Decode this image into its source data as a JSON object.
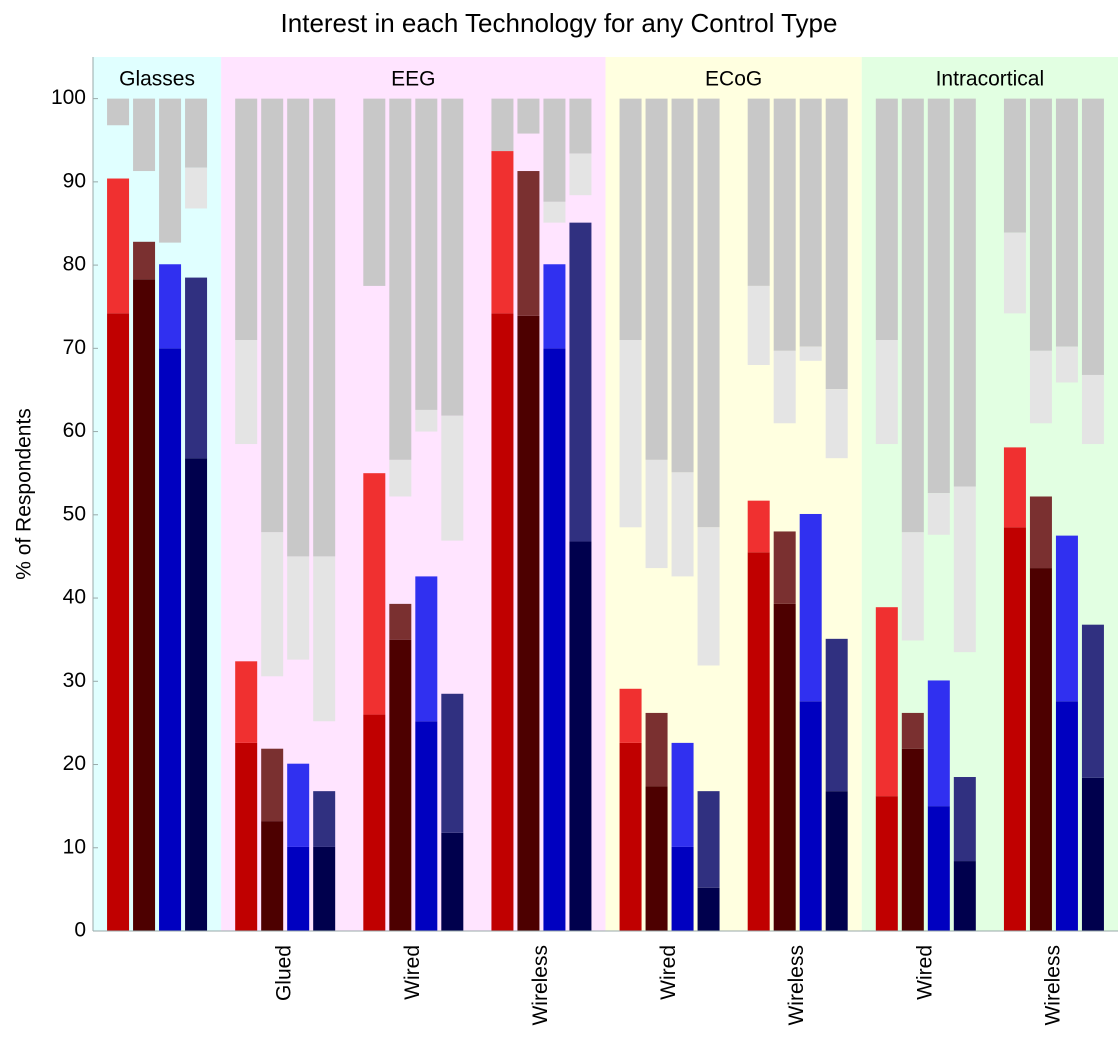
{
  "chart_data": {
    "type": "grouped-stacked-bar",
    "title": "Interest in each Technology for any Control Type",
    "y_label": "% of Respondents",
    "ylim": [
      0,
      105
    ],
    "yticks": [
      0,
      10,
      20,
      30,
      40,
      50,
      60,
      70,
      80,
      90,
      100
    ],
    "total": 100,
    "bar_colors": [
      [
        "#c00000",
        "#f03030"
      ],
      [
        "#4d0000",
        "#7a3030"
      ],
      [
        "#0000c0",
        "#3030f0"
      ],
      [
        "#00004d",
        "#303080"
      ]
    ],
    "negative_colors": [
      "#c8c8c8",
      "#e4e4e4"
    ],
    "groups": [
      {
        "label": "Glasses",
        "background": "#e0ffff",
        "clusters": [
          {
            "label": null,
            "bars": [
              [
                74.2,
                16.2,
                3.2,
                0
              ],
              [
                78.3,
                4.5,
                8.7,
                0
              ],
              [
                70.0,
                10.1,
                17.3,
                0
              ],
              [
                56.8,
                21.7,
                8.3,
                4.9
              ]
            ]
          }
        ]
      },
      {
        "label": "EEG",
        "background": "#ffe4ff",
        "clusters": [
          {
            "label": "Glued",
            "bars": [
              [
                22.6,
                9.8,
                29.0,
                12.5
              ],
              [
                13.2,
                8.7,
                52.1,
                17.3
              ],
              [
                10.1,
                10.0,
                55.0,
                12.4
              ],
              [
                10.1,
                6.7,
                55.0,
                19.8
              ]
            ]
          },
          {
            "label": "Wired",
            "bars": [
              [
                26.0,
                29.0,
                22.5,
                0
              ],
              [
                35.0,
                4.3,
                43.4,
                4.4
              ],
              [
                25.2,
                17.4,
                37.4,
                2.6
              ],
              [
                11.8,
                16.7,
                38.1,
                15.0
              ]
            ]
          },
          {
            "label": "Wireless",
            "bars": [
              [
                74.2,
                19.5,
                6.3,
                0
              ],
              [
                73.9,
                17.4,
                4.2,
                0
              ],
              [
                70.0,
                10.1,
                12.4,
                2.5
              ],
              [
                46.8,
                38.3,
                6.6,
                5.0
              ]
            ]
          }
        ]
      },
      {
        "label": "ECoG",
        "background": "#ffffe0",
        "clusters": [
          {
            "label": "Wired",
            "bars": [
              [
                22.6,
                6.5,
                29.0,
                22.5
              ],
              [
                17.4,
                8.8,
                43.4,
                13.0
              ],
              [
                10.1,
                12.5,
                44.9,
                12.5
              ],
              [
                5.2,
                11.6,
                51.5,
                16.6
              ]
            ]
          },
          {
            "label": "Wireless",
            "bars": [
              [
                45.5,
                6.2,
                22.5,
                9.5
              ],
              [
                39.3,
                8.7,
                30.3,
                8.7
              ],
              [
                27.6,
                22.5,
                29.8,
                1.7
              ],
              [
                16.8,
                18.3,
                34.9,
                8.3
              ]
            ]
          }
        ]
      },
      {
        "label": "Intracortical",
        "background": "#e2ffe2",
        "clusters": [
          {
            "label": "Wired",
            "bars": [
              [
                16.2,
                22.7,
                29.0,
                12.5
              ],
              [
                21.9,
                4.3,
                52.1,
                13.0
              ],
              [
                15.0,
                15.1,
                47.4,
                5.0
              ],
              [
                8.4,
                10.1,
                46.6,
                19.9
              ]
            ]
          },
          {
            "label": "Wireless",
            "bars": [
              [
                48.5,
                9.6,
                16.1,
                9.7
              ],
              [
                43.6,
                8.6,
                30.3,
                8.7
              ],
              [
                27.6,
                19.9,
                29.8,
                4.3
              ],
              [
                18.4,
                18.4,
                33.2,
                8.3
              ]
            ]
          }
        ]
      }
    ]
  }
}
